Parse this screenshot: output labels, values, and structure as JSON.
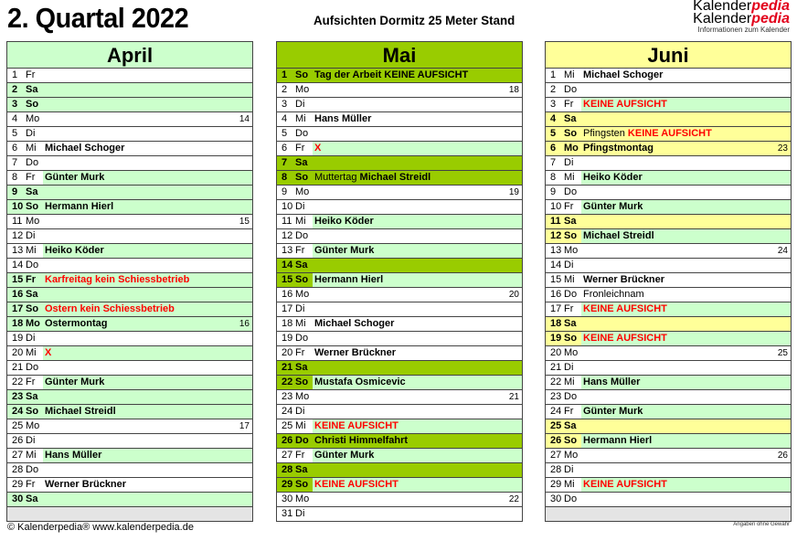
{
  "header": {
    "title": "2. Quartal 2022",
    "subtitle": "Aufsichten Dormitz 25 Meter Stand",
    "logo": {
      "part1": "Kalender",
      "part2": "pedia",
      "tagline": "Informationen zum Kalender"
    }
  },
  "colors": {
    "light_green": "#ccffcc",
    "white": "#ffffff",
    "red_text": "#ff0000"
  },
  "months": [
    {
      "name": "April",
      "color": "#ccffcc",
      "rows": [
        {
          "d": "1",
          "w": "Fr",
          "t": [],
          "kw": "",
          "db": "w",
          "cb": "w"
        },
        {
          "d": "2",
          "w": "Sa",
          "t": [],
          "kw": "",
          "db": "m",
          "cb": "m"
        },
        {
          "d": "3",
          "w": "So",
          "t": [],
          "kw": "",
          "db": "m",
          "cb": "m"
        },
        {
          "d": "4",
          "w": "Mo",
          "t": [],
          "kw": "14",
          "db": "w",
          "cb": "w"
        },
        {
          "d": "5",
          "w": "Di",
          "t": [],
          "kw": "",
          "db": "w",
          "cb": "w"
        },
        {
          "d": "6",
          "w": "Mi",
          "t": [
            {
              "s": "Michael Schoger",
              "c": "b"
            }
          ],
          "kw": "",
          "db": "w",
          "cb": "w"
        },
        {
          "d": "7",
          "w": "Do",
          "t": [],
          "kw": "",
          "db": "w",
          "cb": "w"
        },
        {
          "d": "8",
          "w": "Fr",
          "t": [
            {
              "s": "Günter Murk",
              "c": "b"
            }
          ],
          "kw": "",
          "db": "w",
          "cb": "g"
        },
        {
          "d": "9",
          "w": "Sa",
          "t": [],
          "kw": "",
          "db": "m",
          "cb": "m"
        },
        {
          "d": "10",
          "w": "So",
          "t": [
            {
              "s": "Hermann Hierl",
              "c": "b"
            }
          ],
          "kw": "",
          "db": "m",
          "cb": "m"
        },
        {
          "d": "11",
          "w": "Mo",
          "t": [],
          "kw": "15",
          "db": "w",
          "cb": "w"
        },
        {
          "d": "12",
          "w": "Di",
          "t": [],
          "kw": "",
          "db": "w",
          "cb": "w"
        },
        {
          "d": "13",
          "w": "Mi",
          "t": [
            {
              "s": "Heiko Köder",
              "c": "b"
            }
          ],
          "kw": "",
          "db": "w",
          "cb": "g"
        },
        {
          "d": "14",
          "w": "Do",
          "t": [],
          "kw": "",
          "db": "w",
          "cb": "w"
        },
        {
          "d": "15",
          "w": "Fr",
          "t": [
            {
              "s": "Karfreitag kein Schiessbetrieb",
              "c": "r"
            }
          ],
          "kw": "",
          "db": "m",
          "cb": "m"
        },
        {
          "d": "16",
          "w": "Sa",
          "t": [],
          "kw": "",
          "db": "m",
          "cb": "m"
        },
        {
          "d": "17",
          "w": "So",
          "t": [
            {
              "s": "Ostern  kein Schiessbetrieb",
              "c": "r"
            }
          ],
          "kw": "",
          "db": "m",
          "cb": "m"
        },
        {
          "d": "18",
          "w": "Mo",
          "t": [
            {
              "s": "Ostermontag",
              "c": "b"
            }
          ],
          "kw": "16",
          "db": "m",
          "cb": "m"
        },
        {
          "d": "19",
          "w": "Di",
          "t": [],
          "kw": "",
          "db": "w",
          "cb": "w"
        },
        {
          "d": "20",
          "w": "Mi",
          "t": [
            {
              "s": "X",
              "c": "r"
            }
          ],
          "kw": "",
          "db": "w",
          "cb": "g"
        },
        {
          "d": "21",
          "w": "Do",
          "t": [],
          "kw": "",
          "db": "w",
          "cb": "w"
        },
        {
          "d": "22",
          "w": "Fr",
          "t": [
            {
              "s": "Günter Murk",
              "c": "b"
            }
          ],
          "kw": "",
          "db": "w",
          "cb": "g"
        },
        {
          "d": "23",
          "w": "Sa",
          "t": [],
          "kw": "",
          "db": "m",
          "cb": "m"
        },
        {
          "d": "24",
          "w": "So",
          "t": [
            {
              "s": "Michael Streidl",
              "c": "b"
            }
          ],
          "kw": "",
          "db": "m",
          "cb": "m"
        },
        {
          "d": "25",
          "w": "Mo",
          "t": [],
          "kw": "17",
          "db": "w",
          "cb": "w"
        },
        {
          "d": "26",
          "w": "Di",
          "t": [],
          "kw": "",
          "db": "w",
          "cb": "w"
        },
        {
          "d": "27",
          "w": "Mi",
          "t": [
            {
              "s": "Hans Müller",
              "c": "b"
            }
          ],
          "kw": "",
          "db": "w",
          "cb": "g"
        },
        {
          "d": "28",
          "w": "Do",
          "t": [],
          "kw": "",
          "db": "w",
          "cb": "w"
        },
        {
          "d": "29",
          "w": "Fr",
          "t": [
            {
              "s": "Werner Brückner",
              "c": "b"
            }
          ],
          "kw": "",
          "db": "w",
          "cb": "w"
        },
        {
          "d": "30",
          "w": "Sa",
          "t": [],
          "kw": "",
          "db": "m",
          "cb": "m"
        }
      ]
    },
    {
      "name": "Mai",
      "color": "#99cc00",
      "rows": [
        {
          "d": "1",
          "w": "So",
          "t": [
            {
              "s": "Tag der Arbeit KEINE AUFSICHT",
              "c": "b"
            }
          ],
          "kw": "",
          "db": "m",
          "cb": "m"
        },
        {
          "d": "2",
          "w": "Mo",
          "t": [],
          "kw": "18",
          "db": "w",
          "cb": "w"
        },
        {
          "d": "3",
          "w": "Di",
          "t": [],
          "kw": "",
          "db": "w",
          "cb": "w"
        },
        {
          "d": "4",
          "w": "Mi",
          "t": [
            {
              "s": "Hans Müller",
              "c": "b"
            }
          ],
          "kw": "",
          "db": "w",
          "cb": "w"
        },
        {
          "d": "5",
          "w": "Do",
          "t": [],
          "kw": "",
          "db": "w",
          "cb": "w"
        },
        {
          "d": "6",
          "w": "Fr",
          "t": [
            {
              "s": "X",
              "c": "r"
            }
          ],
          "kw": "",
          "db": "w",
          "cb": "g"
        },
        {
          "d": "7",
          "w": "Sa",
          "t": [],
          "kw": "",
          "db": "m",
          "cb": "m"
        },
        {
          "d": "8",
          "w": "So",
          "t": [
            {
              "s": "Muttertag ",
              "c": "n"
            },
            {
              "s": "Michael Streidl",
              "c": "b"
            }
          ],
          "kw": "",
          "db": "m",
          "cb": "m"
        },
        {
          "d": "9",
          "w": "Mo",
          "t": [],
          "kw": "19",
          "db": "w",
          "cb": "w"
        },
        {
          "d": "10",
          "w": "Di",
          "t": [],
          "kw": "",
          "db": "w",
          "cb": "w"
        },
        {
          "d": "11",
          "w": "Mi",
          "t": [
            {
              "s": "Heiko Köder",
              "c": "b"
            }
          ],
          "kw": "",
          "db": "w",
          "cb": "g"
        },
        {
          "d": "12",
          "w": "Do",
          "t": [],
          "kw": "",
          "db": "w",
          "cb": "w"
        },
        {
          "d": "13",
          "w": "Fr",
          "t": [
            {
              "s": "Günter Murk",
              "c": "b"
            }
          ],
          "kw": "",
          "db": "w",
          "cb": "g"
        },
        {
          "d": "14",
          "w": "Sa",
          "t": [],
          "kw": "",
          "db": "m",
          "cb": "m"
        },
        {
          "d": "15",
          "w": "So",
          "t": [
            {
              "s": "Hermann Hierl",
              "c": "b"
            }
          ],
          "kw": "",
          "db": "m",
          "cb": "g"
        },
        {
          "d": "16",
          "w": "Mo",
          "t": [],
          "kw": "20",
          "db": "w",
          "cb": "w"
        },
        {
          "d": "17",
          "w": "Di",
          "t": [],
          "kw": "",
          "db": "w",
          "cb": "w"
        },
        {
          "d": "18",
          "w": "Mi",
          "t": [
            {
              "s": "Michael Schoger",
              "c": "b"
            }
          ],
          "kw": "",
          "db": "w",
          "cb": "w"
        },
        {
          "d": "19",
          "w": "Do",
          "t": [],
          "kw": "",
          "db": "w",
          "cb": "w"
        },
        {
          "d": "20",
          "w": "Fr",
          "t": [
            {
              "s": "Werner Brückner",
              "c": "b"
            }
          ],
          "kw": "",
          "db": "w",
          "cb": "w"
        },
        {
          "d": "21",
          "w": "Sa",
          "t": [],
          "kw": "",
          "db": "m",
          "cb": "m"
        },
        {
          "d": "22",
          "w": "So",
          "t": [
            {
              "s": "Mustafa Osmicevic",
              "c": "b"
            }
          ],
          "kw": "",
          "db": "m",
          "cb": "g"
        },
        {
          "d": "23",
          "w": "Mo",
          "t": [],
          "kw": "21",
          "db": "w",
          "cb": "w"
        },
        {
          "d": "24",
          "w": "Di",
          "t": [],
          "kw": "",
          "db": "w",
          "cb": "w"
        },
        {
          "d": "25",
          "w": "Mi",
          "t": [
            {
              "s": "KEINE AUFSICHT",
              "c": "r"
            }
          ],
          "kw": "",
          "db": "w",
          "cb": "g"
        },
        {
          "d": "26",
          "w": "Do",
          "t": [
            {
              "s": "Christi Himmelfahrt",
              "c": "b"
            }
          ],
          "kw": "",
          "db": "m",
          "cb": "m"
        },
        {
          "d": "27",
          "w": "Fr",
          "t": [
            {
              "s": "Günter Murk",
              "c": "b"
            }
          ],
          "kw": "",
          "db": "w",
          "cb": "g"
        },
        {
          "d": "28",
          "w": "Sa",
          "t": [],
          "kw": "",
          "db": "m",
          "cb": "m"
        },
        {
          "d": "29",
          "w": "So",
          "t": [
            {
              "s": "KEINE AUFSICHT",
              "c": "r"
            }
          ],
          "kw": "",
          "db": "m",
          "cb": "g"
        },
        {
          "d": "30",
          "w": "Mo",
          "t": [],
          "kw": "22",
          "db": "w",
          "cb": "w"
        },
        {
          "d": "31",
          "w": "Di",
          "t": [],
          "kw": "",
          "db": "w",
          "cb": "w"
        }
      ]
    },
    {
      "name": "Juni",
      "color": "#ffff99",
      "rows": [
        {
          "d": "1",
          "w": "Mi",
          "t": [
            {
              "s": "Michael Schoger",
              "c": "b"
            }
          ],
          "kw": "",
          "db": "w",
          "cb": "w"
        },
        {
          "d": "2",
          "w": "Do",
          "t": [],
          "kw": "",
          "db": "w",
          "cb": "w"
        },
        {
          "d": "3",
          "w": "Fr",
          "t": [
            {
              "s": "KEINE AUFSICHT",
              "c": "r"
            }
          ],
          "kw": "",
          "db": "w",
          "cb": "g"
        },
        {
          "d": "4",
          "w": "Sa",
          "t": [],
          "kw": "",
          "db": "m",
          "cb": "m"
        },
        {
          "d": "5",
          "w": "So",
          "t": [
            {
              "s": "Pfingsten ",
              "c": "n"
            },
            {
              "s": "KEINE AUFSICHT",
              "c": "r"
            }
          ],
          "kw": "",
          "db": "m",
          "cb": "m"
        },
        {
          "d": "6",
          "w": "Mo",
          "t": [
            {
              "s": "Pfingstmontag",
              "c": "b"
            }
          ],
          "kw": "23",
          "db": "m",
          "cb": "m"
        },
        {
          "d": "7",
          "w": "Di",
          "t": [],
          "kw": "",
          "db": "w",
          "cb": "w"
        },
        {
          "d": "8",
          "w": "Mi",
          "t": [
            {
              "s": "Heiko Köder",
              "c": "b"
            }
          ],
          "kw": "",
          "db": "w",
          "cb": "g"
        },
        {
          "d": "9",
          "w": "Do",
          "t": [],
          "kw": "",
          "db": "w",
          "cb": "w"
        },
        {
          "d": "10",
          "w": "Fr",
          "t": [
            {
              "s": "Günter Murk",
              "c": "b"
            }
          ],
          "kw": "",
          "db": "w",
          "cb": "g"
        },
        {
          "d": "11",
          "w": "Sa",
          "t": [],
          "kw": "",
          "db": "m",
          "cb": "m"
        },
        {
          "d": "12",
          "w": "So",
          "t": [
            {
              "s": "Michael Streidl",
              "c": "b"
            }
          ],
          "kw": "",
          "db": "m",
          "cb": "g"
        },
        {
          "d": "13",
          "w": "Mo",
          "t": [],
          "kw": "24",
          "db": "w",
          "cb": "w"
        },
        {
          "d": "14",
          "w": "Di",
          "t": [],
          "kw": "",
          "db": "w",
          "cb": "w"
        },
        {
          "d": "15",
          "w": "Mi",
          "t": [
            {
              "s": "Werner Brückner",
              "c": "b"
            }
          ],
          "kw": "",
          "db": "w",
          "cb": "w"
        },
        {
          "d": "16",
          "w": "Do",
          "t": [
            {
              "s": "Fronleichnam",
              "c": "n"
            }
          ],
          "kw": "",
          "db": "w",
          "cb": "w"
        },
        {
          "d": "17",
          "w": "Fr",
          "t": [
            {
              "s": "KEINE AUFSICHT",
              "c": "r"
            }
          ],
          "kw": "",
          "db": "w",
          "cb": "g"
        },
        {
          "d": "18",
          "w": "Sa",
          "t": [],
          "kw": "",
          "db": "m",
          "cb": "m"
        },
        {
          "d": "19",
          "w": "So",
          "t": [
            {
              "s": "KEINE AUFSICHT",
              "c": "r"
            }
          ],
          "kw": "",
          "db": "m",
          "cb": "g"
        },
        {
          "d": "20",
          "w": "Mo",
          "t": [],
          "kw": "25",
          "db": "w",
          "cb": "w"
        },
        {
          "d": "21",
          "w": "Di",
          "t": [],
          "kw": "",
          "db": "w",
          "cb": "w"
        },
        {
          "d": "22",
          "w": "Mi",
          "t": [
            {
              "s": "Hans Müller",
              "c": "b"
            }
          ],
          "kw": "",
          "db": "w",
          "cb": "g"
        },
        {
          "d": "23",
          "w": "Do",
          "t": [],
          "kw": "",
          "db": "w",
          "cb": "w"
        },
        {
          "d": "24",
          "w": "Fr",
          "t": [
            {
              "s": "Günter Murk",
              "c": "b"
            }
          ],
          "kw": "",
          "db": "w",
          "cb": "g"
        },
        {
          "d": "25",
          "w": "Sa",
          "t": [],
          "kw": "",
          "db": "m",
          "cb": "m"
        },
        {
          "d": "26",
          "w": "So",
          "t": [
            {
              "s": "Hermann Hierl",
              "c": "b"
            }
          ],
          "kw": "",
          "db": "m",
          "cb": "g"
        },
        {
          "d": "27",
          "w": "Mo",
          "t": [],
          "kw": "26",
          "db": "w",
          "cb": "w"
        },
        {
          "d": "28",
          "w": "Di",
          "t": [],
          "kw": "",
          "db": "w",
          "cb": "w"
        },
        {
          "d": "29",
          "w": "Mi",
          "t": [
            {
              "s": "KEINE AUFSICHT",
              "c": "r"
            }
          ],
          "kw": "",
          "db": "w",
          "cb": "g"
        },
        {
          "d": "30",
          "w": "Do",
          "t": [],
          "kw": "",
          "db": "w",
          "cb": "w"
        }
      ]
    }
  ],
  "footer": {
    "copyright": "© Kalenderpedia®   www.kalenderpedia.de",
    "disclaimer": "Angaben ohne Gewähr"
  }
}
